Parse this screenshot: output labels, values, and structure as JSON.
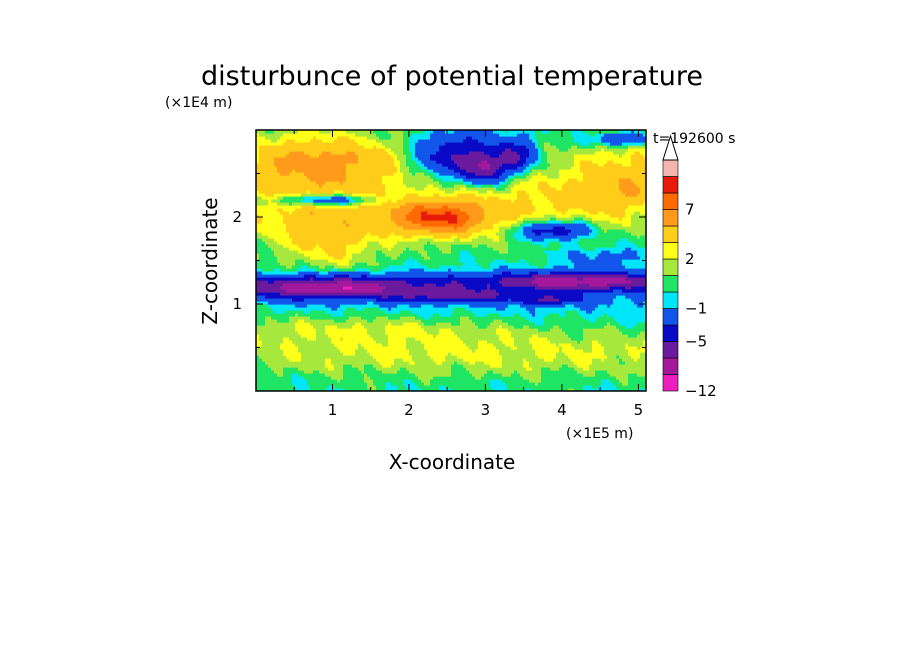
{
  "chart_data": {
    "type": "heatmap",
    "title": "disturbunce of potential temperature",
    "time_label": "t=192600 s",
    "xlabel": "X-coordinate",
    "ylabel": "Z-coordinate",
    "x_unit": "(×1E5 m)",
    "y_unit": "(×1E4 m)",
    "x_range": [
      0,
      5.1
    ],
    "y_range": [
      0,
      3.0
    ],
    "x_ticks": [
      1,
      2,
      3,
      4,
      5
    ],
    "x_tick_labels": [
      "1",
      "2",
      "3",
      "4",
      "5"
    ],
    "y_ticks": [
      1,
      2
    ],
    "y_tick_labels": [
      "1",
      "2"
    ],
    "colorbar": {
      "levels": [
        -12,
        -9,
        -7,
        -5,
        -3,
        -1,
        0,
        1,
        2,
        3,
        5,
        7,
        9,
        11
      ],
      "tick_labels": [
        "7",
        "2",
        "−1",
        "−5",
        "−12"
      ],
      "colors": [
        "#ee1ebe",
        "#a4189c",
        "#6a1a9c",
        "#0a0ac6",
        "#1255ea",
        "#00e6f8",
        "#1ee664",
        "#a6e83c",
        "#ffff1a",
        "#ffcc1a",
        "#ff9a1a",
        "#ff6a00",
        "#e81a0a",
        "#f5b4ae"
      ],
      "extend": "max"
    }
  }
}
